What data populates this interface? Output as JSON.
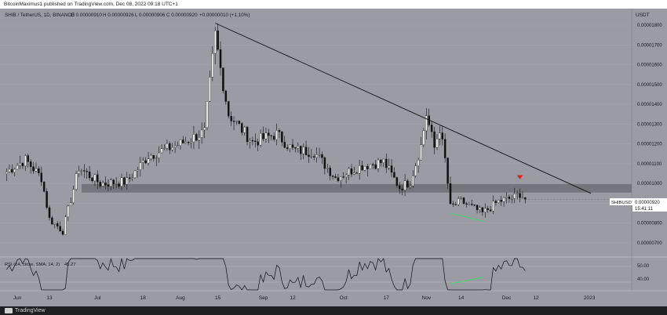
{
  "header": {
    "published_line": "BitcoinMaximus1 published on TradingView.com, Dec 08, 2022 09:18 UTC+1"
  },
  "legend": {
    "symbol_line": "SHIB / TetherUS, 1D, BINANCE",
    "ohlc": [
      "O 0.00000910",
      "H 0.00000926",
      "L 0.00000906",
      "C 0.00000920",
      "+0.00000010 (+1.10%)"
    ]
  },
  "price_axis": {
    "unit": "USDT",
    "ticks": [
      "0.00001800",
      "0.00001700",
      "0.00001600",
      "0.00001500",
      "0.00001400",
      "0.00001300",
      "0.00001200",
      "0.00001100",
      "0.00001000",
      "0.00000900",
      "0.00000800",
      "0.00000700"
    ]
  },
  "badges": {
    "symbol": "SHIBUSDT",
    "price": "0.00000920",
    "timer": "15:41:11"
  },
  "rsi": {
    "label": "RSI (14, close, SMA, 14, 2)",
    "value": "45.27",
    "ticks": [
      "50.00",
      "40.00"
    ]
  },
  "time_axis": {
    "labels": [
      "Jun",
      "13",
      "Jul",
      "18",
      "Aug",
      "15",
      "Sep",
      "12",
      "Oct",
      "17",
      "Nov",
      "14",
      "Dec",
      "12",
      "2023"
    ]
  },
  "footer": {
    "brand": "TradingView"
  },
  "colors": {
    "background": "#9a9ba3",
    "candle_up": "#ffffff",
    "candle_down": "#101010",
    "support_zone": "#6e6f76",
    "trendline": "#111111",
    "divergence": "#3ddc6a",
    "marker": "#e0201a"
  },
  "chart_data": {
    "type": "candlestick",
    "title": "SHIB / TetherUS, 1D, BINANCE",
    "ylabel": "USDT",
    "ylim": [
      6.5e-06,
      1.88e-05
    ],
    "anchors": [
      {
        "date": "2022-05-28",
        "close": 1.06e-05
      },
      {
        "date": "2022-06-04",
        "close": 1.12e-05
      },
      {
        "date": "2022-06-10",
        "close": 1.03e-05
      },
      {
        "date": "2022-06-13",
        "close": 8.2e-06
      },
      {
        "date": "2022-06-18",
        "close": 7.6e-06
      },
      {
        "date": "2022-06-24",
        "close": 1.08e-05
      },
      {
        "date": "2022-07-02",
        "close": 1e-05
      },
      {
        "date": "2022-07-12",
        "close": 1.01e-05
      },
      {
        "date": "2022-07-20",
        "close": 1.14e-05
      },
      {
        "date": "2022-08-01",
        "close": 1.2e-05
      },
      {
        "date": "2022-08-10",
        "close": 1.26e-05
      },
      {
        "date": "2022-08-14",
        "close": 1.75e-05
      },
      {
        "date": "2022-08-16",
        "close": 1.58e-05
      },
      {
        "date": "2022-08-19",
        "close": 1.35e-05
      },
      {
        "date": "2022-08-28",
        "close": 1.21e-05
      },
      {
        "date": "2022-09-06",
        "close": 1.25e-05
      },
      {
        "date": "2022-09-12",
        "close": 1.17e-05
      },
      {
        "date": "2022-09-20",
        "close": 1.16e-05
      },
      {
        "date": "2022-09-28",
        "close": 1.03e-05
      },
      {
        "date": "2022-10-08",
        "close": 1.09e-05
      },
      {
        "date": "2022-10-16",
        "close": 1.11e-05
      },
      {
        "date": "2022-10-22",
        "close": 9.8e-06
      },
      {
        "date": "2022-10-26",
        "close": 1.01e-05
      },
      {
        "date": "2022-10-30",
        "close": 1.19e-05
      },
      {
        "date": "2022-11-01",
        "close": 1.35e-05
      },
      {
        "date": "2022-11-04",
        "close": 1.18e-05
      },
      {
        "date": "2022-11-06",
        "close": 1.28e-05
      },
      {
        "date": "2022-11-08",
        "close": 1.12e-05
      },
      {
        "date": "2022-11-10",
        "close": 8.8e-06
      },
      {
        "date": "2022-11-14",
        "close": 9.1e-06
      },
      {
        "date": "2022-11-22",
        "close": 8.5e-06
      },
      {
        "date": "2022-11-28",
        "close": 9.1e-06
      },
      {
        "date": "2022-12-04",
        "close": 9.3e-06
      },
      {
        "date": "2022-12-06",
        "close": 9.5e-06
      },
      {
        "date": "2022-12-08",
        "close": 9.2e-06
      }
    ],
    "support_zone": [
      9.7e-06,
      9.9e-06
    ],
    "last_price": 9.2e-06,
    "rsi_ylim": [
      35,
      55
    ]
  }
}
